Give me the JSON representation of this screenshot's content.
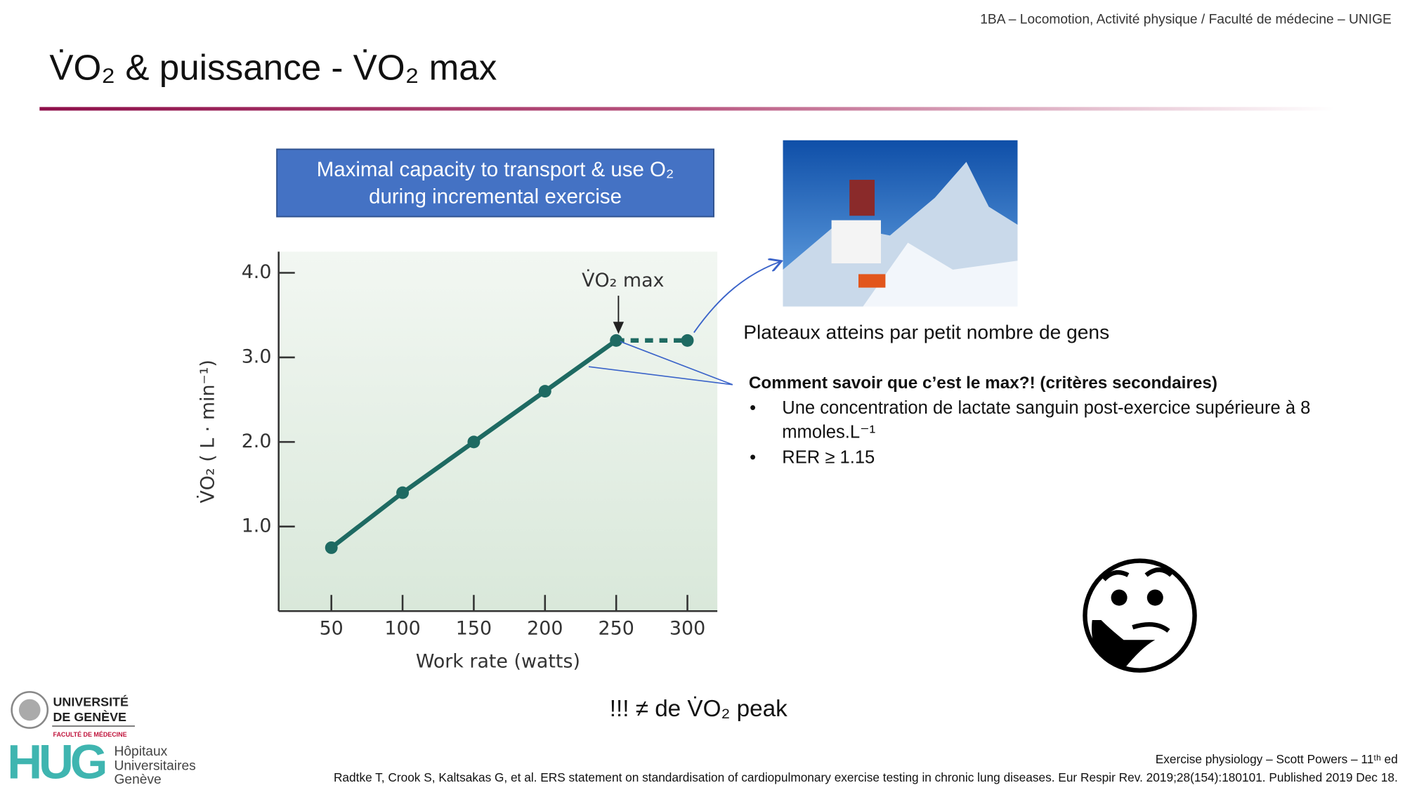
{
  "header": {
    "course": "1BA – Locomotion, Activité physique / Faculté de médecine – UNIGE",
    "title": "V̇O₂ & puissance - V̇O₂ max"
  },
  "box": {
    "lines": [
      "Maximal capacity to transport & use O₂",
      "during incremental exercise"
    ]
  },
  "chart_data": {
    "type": "line",
    "x": [
      50,
      100,
      150,
      200,
      250,
      300
    ],
    "series": [
      {
        "color": "#1e6a62",
        "values": [
          0.75,
          1.4,
          2.0,
          2.6,
          3.2,
          3.2
        ]
      }
    ],
    "xlim": [
      13,
      321
    ],
    "ylim": [
      0,
      4.25
    ],
    "xticks": [
      50,
      100,
      150,
      200,
      250,
      300
    ],
    "yticks": [
      {
        "value": 1,
        "label": "1.0"
      },
      {
        "value": 2,
        "label": "2.0"
      },
      {
        "value": 3,
        "label": "3.0"
      },
      {
        "value": 4,
        "label": "4.0"
      }
    ],
    "xlabel": "Work rate (watts)",
    "ylabel": "V̇O₂ ( L · min⁻¹)",
    "annotation": "V̇O₂ max"
  },
  "photo_caption": "Plateaux atteins par petit nombre de gens",
  "criteria": {
    "heading": "Comment savoir que c’est le max?! (critères secondaires)",
    "items": [
      [
        "Une concentration de lactate sanguin post-exercice supérieure à 8",
        "mmoles.L⁻¹"
      ],
      [
        "RER ≥ 1.15"
      ]
    ]
  },
  "note": "!!! ≠ de V̇O₂ peak",
  "logos": {
    "unige": [
      "UNIVERSITÉ",
      "DE GENÈVE",
      "FACULTÉ DE MÉDECINE"
    ],
    "hug": "HUG",
    "hug_name": [
      "Hôpitaux",
      "Universitaires",
      "Genève"
    ]
  },
  "references": [
    "Exercise physiology – Scott Powers – 11ᵗʰ ed",
    "Radtke T, Crook S, Kaltsakas G, et al. ERS statement on standardisation of cardiopulmonary exercise testing in chronic lung diseases. Eur Respir Rev. 2019;28(154):180101. Published 2019 Dec 18."
  ]
}
